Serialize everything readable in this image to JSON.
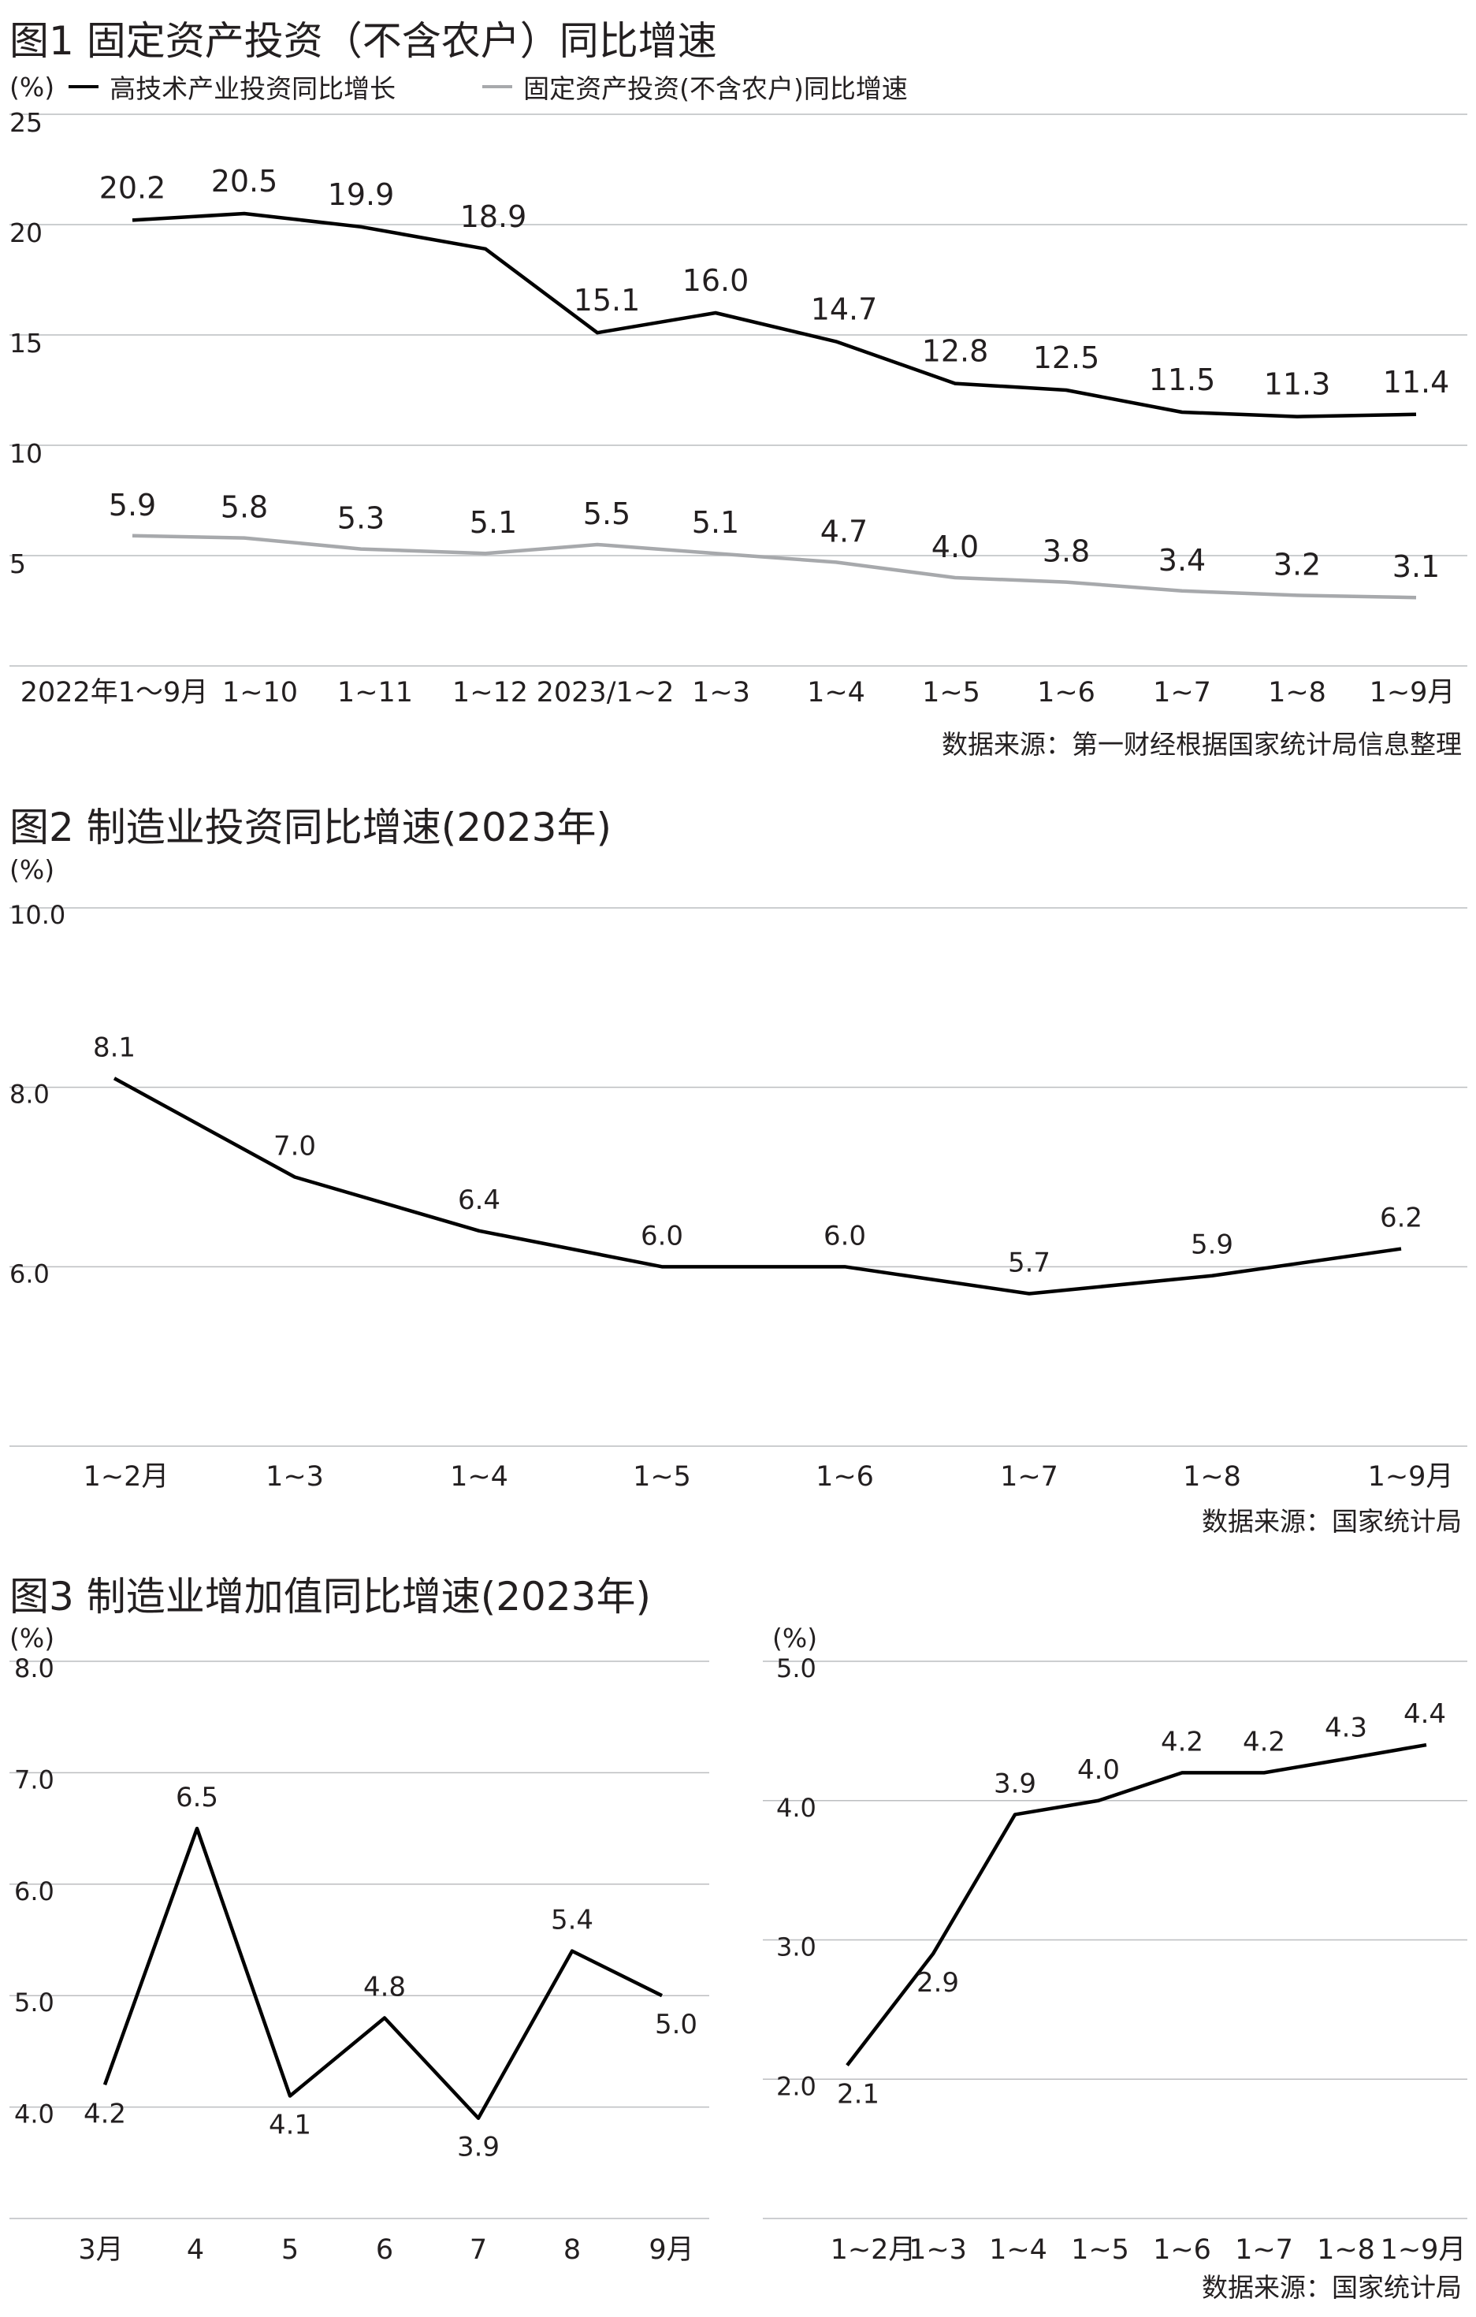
{
  "chart_data": [
    {
      "id": "fig1",
      "type": "line",
      "title": "图1 固定资产投资（不含农户）同比增速",
      "ylabel": "(%)",
      "categories": [
        "2022年1～9月",
        "1~10",
        "1~11",
        "1~12",
        "2023/1~2",
        "1~3",
        "1~4",
        "1~5",
        "1~6",
        "1~7",
        "1~8",
        "1~9月"
      ],
      "yticks": [
        "25",
        "20",
        "15",
        "10",
        "5"
      ],
      "ylim": [
        0,
        25
      ],
      "grid": true,
      "legend_position": "top-left",
      "series": [
        {
          "name": "高技术产业投资同比增长",
          "color": "#000000",
          "values": [
            20.2,
            20.5,
            19.9,
            18.9,
            15.1,
            16.0,
            14.7,
            12.8,
            12.5,
            11.5,
            11.3,
            11.4
          ],
          "labels": [
            "20.2",
            "20.5",
            "19.9",
            "18.9",
            "15.1",
            "16.0",
            "14.7",
            "12.8",
            "12.5",
            "11.5",
            "11.3",
            "11.4"
          ]
        },
        {
          "name": "固定资产投资(不含农户)同比增速",
          "color": "#a7a9ac",
          "values": [
            5.9,
            5.8,
            5.3,
            5.1,
            5.5,
            5.1,
            4.7,
            4.0,
            3.8,
            3.4,
            3.2,
            3.1
          ],
          "labels": [
            "5.9",
            "5.8",
            "5.3",
            "5.1",
            "5.5",
            "5.1",
            "4.7",
            "4.0",
            "3.8",
            "3.4",
            "3.2",
            "3.1"
          ]
        }
      ],
      "source": "数据来源：第一财经根据国家统计局信息整理"
    },
    {
      "id": "fig2",
      "type": "line",
      "title": "图2 制造业投资同比增速(2023年)",
      "ylabel": "(%)",
      "categories": [
        "1~2月",
        "1~3",
        "1~4",
        "1~5",
        "1~6",
        "1~7",
        "1~8",
        "1~9月"
      ],
      "yticks": [
        "10.0",
        "8.0",
        "6.0"
      ],
      "ylim": [
        4.0,
        10.0
      ],
      "grid": true,
      "series": [
        {
          "name": "",
          "color": "#000000",
          "values": [
            8.1,
            7.0,
            6.4,
            6.0,
            6.0,
            5.7,
            5.9,
            6.2
          ],
          "labels": [
            "8.1",
            "7.0",
            "6.4",
            "6.0",
            "6.0",
            "5.7",
            "5.9",
            "6.2"
          ]
        }
      ],
      "source": "数据来源：国家统计局"
    },
    {
      "id": "fig3a",
      "type": "line",
      "title": "图3 制造业增加值同比增速(2023年)",
      "ylabel": "(%)",
      "categories": [
        "3月",
        "4",
        "5",
        "6",
        "7",
        "8",
        "9月"
      ],
      "yticks": [
        "8.0",
        "7.0",
        "6.0",
        "5.0",
        "4.0"
      ],
      "ylim": [
        3.0,
        8.0
      ],
      "grid": true,
      "series": [
        {
          "name": "",
          "color": "#000000",
          "values": [
            4.2,
            6.5,
            4.1,
            4.8,
            3.9,
            5.4,
            5.0
          ],
          "labels": [
            "4.2",
            "6.5",
            "4.1",
            "4.8",
            "3.9",
            "5.4",
            "5.0"
          ]
        }
      ]
    },
    {
      "id": "fig3b",
      "type": "line",
      "ylabel": "(%)",
      "categories": [
        "1~2月",
        "1~3",
        "1~4",
        "1~5",
        "1~6",
        "1~7",
        "1~8",
        "1~9月"
      ],
      "yticks": [
        "5.0",
        "4.0",
        "3.0",
        "2.0"
      ],
      "ylim": [
        1.0,
        5.0
      ],
      "grid": true,
      "series": [
        {
          "name": "",
          "color": "#000000",
          "values": [
            2.1,
            2.9,
            3.9,
            4.0,
            4.2,
            4.2,
            4.3,
            4.4
          ],
          "labels": [
            "2.1",
            "2.9",
            "3.9",
            "4.0",
            "4.2",
            "4.2",
            "4.3",
            "4.4"
          ]
        }
      ],
      "source": "数据来源：国家统计局"
    }
  ]
}
